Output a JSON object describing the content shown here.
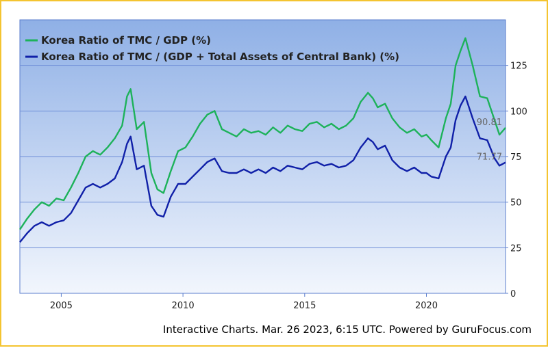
{
  "footer": {
    "prefix": "Interactive Charts.",
    "timestamp": "Mar. 26 2023, 6:15 UTC.",
    "powered_by": "Powered by GuruFocus.com"
  },
  "colors": {
    "series_1": "#1db25a",
    "series_2": "#1020a8",
    "border": "#f4c430",
    "plot_top": "#8fb0e6",
    "plot_bottom": "#f2f6fd",
    "gridline": "#6f8fd8"
  },
  "chart_data": {
    "type": "line",
    "title": "",
    "xlabel": "",
    "ylabel": "",
    "xlim": [
      2003.3,
      2023.25
    ],
    "ylim": [
      0,
      150
    ],
    "yticks": [
      0,
      25,
      50,
      75,
      100,
      125
    ],
    "xticks": [
      2005,
      2010,
      2015,
      2020
    ],
    "legend_position": "top-left",
    "end_labels": [
      "90.81",
      "71.77"
    ],
    "series": [
      {
        "name": "Korea Ratio of TMC / GDP (%)",
        "x": [
          2003.3,
          2003.6,
          2003.9,
          2004.2,
          2004.5,
          2004.8,
          2005.1,
          2005.4,
          2005.7,
          2006.0,
          2006.3,
          2006.6,
          2006.9,
          2007.2,
          2007.5,
          2007.7,
          2007.85,
          2008.1,
          2008.4,
          2008.7,
          2008.95,
          2009.2,
          2009.5,
          2009.8,
          2010.1,
          2010.4,
          2010.7,
          2011.0,
          2011.3,
          2011.6,
          2011.9,
          2012.2,
          2012.5,
          2012.8,
          2013.1,
          2013.4,
          2013.7,
          2014.0,
          2014.3,
          2014.6,
          2014.9,
          2015.2,
          2015.5,
          2015.8,
          2016.1,
          2016.4,
          2016.7,
          2017.0,
          2017.3,
          2017.6,
          2017.8,
          2018.0,
          2018.3,
          2018.6,
          2018.9,
          2019.2,
          2019.5,
          2019.8,
          2020.0,
          2020.2,
          2020.5,
          2020.8,
          2021.0,
          2021.2,
          2021.4,
          2021.6,
          2021.9,
          2022.2,
          2022.5,
          2022.8,
          2023.0,
          2023.25
        ],
        "values": [
          35,
          41,
          46,
          50,
          48,
          52,
          51,
          58,
          66,
          75,
          78,
          76,
          80,
          85,
          92,
          108,
          112,
          90,
          94,
          66,
          57,
          55,
          67,
          78,
          80,
          86,
          93,
          98,
          100,
          90,
          88,
          86,
          90,
          88,
          89,
          87,
          91,
          88,
          92,
          90,
          89,
          93,
          94,
          91,
          93,
          90,
          92,
          96,
          105,
          110,
          107,
          102,
          104,
          96,
          91,
          88,
          90,
          86,
          87,
          84,
          80,
          96,
          104,
          125,
          133,
          140,
          125,
          108,
          107,
          95,
          87,
          90.81
        ]
      },
      {
        "name": "Korea Ratio of TMC / (GDP + Total Assets of Central Bank) (%)",
        "x": [
          2003.3,
          2003.6,
          2003.9,
          2004.2,
          2004.5,
          2004.8,
          2005.1,
          2005.4,
          2005.7,
          2006.0,
          2006.3,
          2006.6,
          2006.9,
          2007.2,
          2007.5,
          2007.7,
          2007.85,
          2008.1,
          2008.4,
          2008.7,
          2008.95,
          2009.2,
          2009.5,
          2009.8,
          2010.1,
          2010.4,
          2010.7,
          2011.0,
          2011.3,
          2011.6,
          2011.9,
          2012.2,
          2012.5,
          2012.8,
          2013.1,
          2013.4,
          2013.7,
          2014.0,
          2014.3,
          2014.6,
          2014.9,
          2015.2,
          2015.5,
          2015.8,
          2016.1,
          2016.4,
          2016.7,
          2017.0,
          2017.3,
          2017.6,
          2017.8,
          2018.0,
          2018.3,
          2018.6,
          2018.9,
          2019.2,
          2019.5,
          2019.8,
          2020.0,
          2020.2,
          2020.5,
          2020.8,
          2021.0,
          2021.2,
          2021.4,
          2021.6,
          2021.9,
          2022.2,
          2022.5,
          2022.8,
          2023.0,
          2023.25
        ],
        "values": [
          28,
          33,
          37,
          39,
          37,
          39,
          40,
          44,
          51,
          58,
          60,
          58,
          60,
          63,
          72,
          82,
          86,
          68,
          70,
          48,
          43,
          42,
          53,
          60,
          60,
          64,
          68,
          72,
          74,
          67,
          66,
          66,
          68,
          66,
          68,
          66,
          69,
          67,
          70,
          69,
          68,
          71,
          72,
          70,
          71,
          69,
          70,
          73,
          80,
          85,
          83,
          79,
          81,
          73,
          69,
          67,
          69,
          66,
          66,
          64,
          63,
          75,
          80,
          95,
          103,
          108,
          96,
          85,
          84,
          74,
          70,
          71.77
        ]
      }
    ]
  }
}
